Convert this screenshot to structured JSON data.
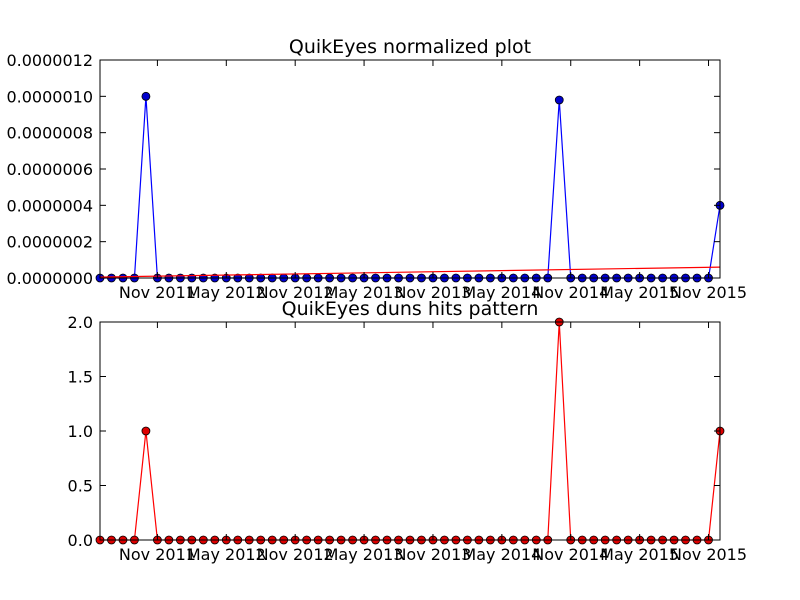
{
  "chart_data": [
    {
      "type": "line",
      "title": "QuikEyes normalized plot",
      "xlabel": "",
      "ylabel": "",
      "x_start": "2011-06",
      "x_end": "2015-11",
      "ylim": [
        0,
        1.2e-06
      ],
      "yticks": [
        "0.0000000",
        "0.0000002",
        "0.0000004",
        "0.0000006",
        "0.0000008",
        "0.0000010",
        "0.0000012"
      ],
      "xtick_labels": [
        "Nov 2011",
        "May 2012",
        "Nov 2012",
        "May 2013",
        "Nov 2013",
        "May 2014",
        "Nov 2014",
        "May 2015",
        "Nov 2015"
      ],
      "grid": false,
      "series": [
        {
          "color": "#0000ff",
          "marker_color": "#0000cc",
          "values": [
            0,
            0,
            0,
            0,
            1e-06,
            0,
            0,
            0,
            0,
            0,
            0,
            0,
            0,
            0,
            0,
            0,
            0,
            0,
            0,
            0,
            0,
            0,
            0,
            0,
            0,
            0,
            0,
            0,
            0,
            0,
            0,
            0,
            0,
            0,
            0,
            0,
            0,
            0,
            0,
            0,
            9.8e-07,
            0,
            0,
            0,
            0,
            0,
            0,
            0,
            0,
            0,
            0,
            0,
            0,
            0,
            4e-07
          ]
        },
        {
          "color": "#ff0000",
          "type": "trend",
          "values": [
            5e-09,
            6e-08
          ]
        }
      ]
    },
    {
      "type": "line",
      "title": "QuikEyes duns hits pattern",
      "xlabel": "",
      "ylabel": "",
      "x_start": "2011-06",
      "x_end": "2015-11",
      "ylim": [
        0,
        2.0
      ],
      "yticks": [
        "0.0",
        "0.5",
        "1.0",
        "1.5",
        "2.0"
      ],
      "xtick_labels": [
        "Nov 2011",
        "May 2012",
        "Nov 2012",
        "May 2013",
        "Nov 2013",
        "May 2014",
        "Nov 2014",
        "May 2015",
        "Nov 2015"
      ],
      "grid": false,
      "series": [
        {
          "color": "#ff0000",
          "marker_color": "#dd0000",
          "values": [
            0,
            0,
            0,
            0,
            1,
            0,
            0,
            0,
            0,
            0,
            0,
            0,
            0,
            0,
            0,
            0,
            0,
            0,
            0,
            0,
            0,
            0,
            0,
            0,
            0,
            0,
            0,
            0,
            0,
            0,
            0,
            0,
            0,
            0,
            0,
            0,
            0,
            0,
            0,
            0,
            2,
            0,
            0,
            0,
            0,
            0,
            0,
            0,
            0,
            0,
            0,
            0,
            0,
            0,
            1
          ]
        }
      ]
    }
  ]
}
